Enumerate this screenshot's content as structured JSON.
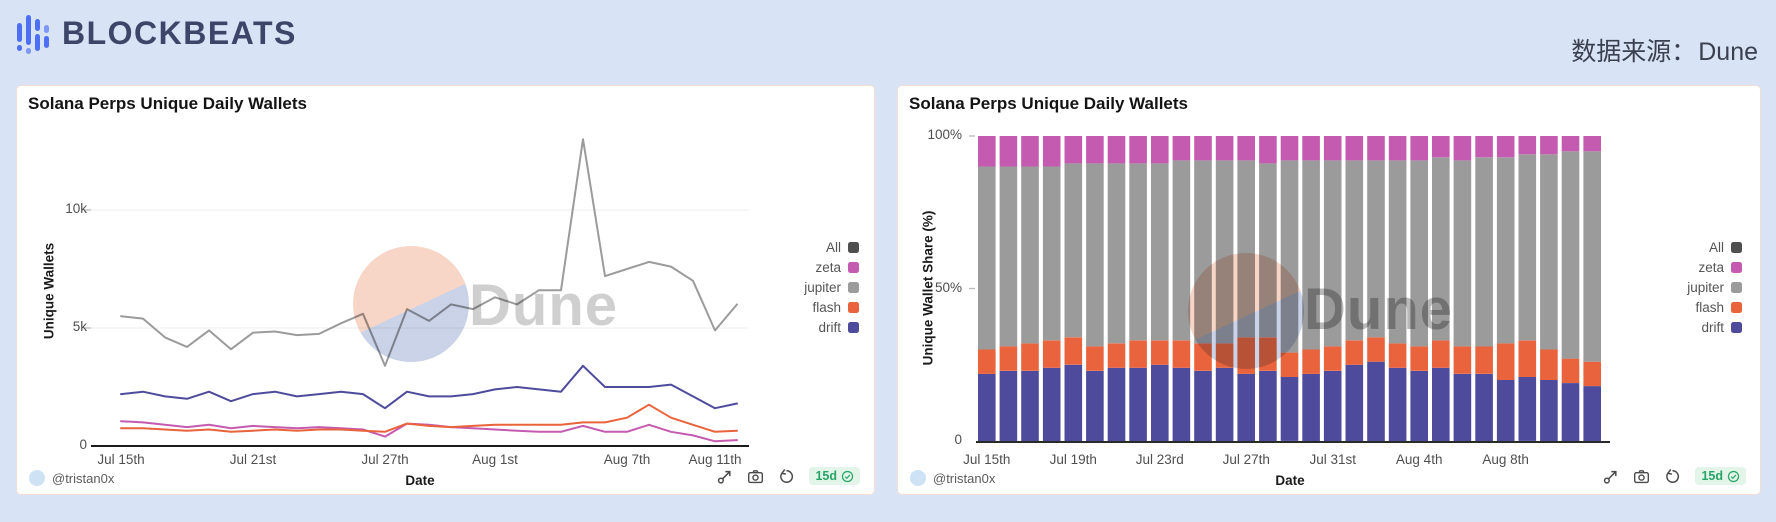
{
  "header": {
    "brand": "BLOCKBEATS",
    "source_label": "数据来源：",
    "source_value": "Dune"
  },
  "watermark": "Dune",
  "footer": {
    "author": "@tristan0x",
    "badge": "15d"
  },
  "colors": {
    "page_bg": "#d9e3f6",
    "panel_border": "#f3ded5",
    "brand_navy": "#3d4569",
    "brand_blue": "#4d6ff3",
    "all": "#4f4f4f",
    "zeta": "#c55bb0",
    "jupiter": "#9b9b9b",
    "flash": "#e9633c",
    "drift": "#4e4b9c",
    "badge_green": "#27a567",
    "watermark_salmon": "#f6d3c4",
    "watermark_blue": "#c7d0e6"
  },
  "legend": [
    "All",
    "zeta",
    "jupiter",
    "flash",
    "drift"
  ],
  "chart_data": [
    {
      "type": "line",
      "title": "Solana Perps Unique Daily Wallets",
      "xlabel": "Date",
      "ylabel": "Unique Wallets",
      "ylim": [
        0,
        13300
      ],
      "grid": true,
      "grid_values": [
        5,
        10
      ],
      "legend_position": "right",
      "unit": "thousands of wallets",
      "x": [
        "Jul 15",
        "Jul 16",
        "Jul 17",
        "Jul 18",
        "Jul 19",
        "Jul 20",
        "Jul 21",
        "Jul 22",
        "Jul 23",
        "Jul 24",
        "Jul 25",
        "Jul 26",
        "Jul 27",
        "Jul 28",
        "Jul 29",
        "Jul 30",
        "Jul 31",
        "Aug 1",
        "Aug 2",
        "Aug 3",
        "Aug 4",
        "Aug 5",
        "Aug 6",
        "Aug 7",
        "Aug 8",
        "Aug 9",
        "Aug 10",
        "Aug 11",
        "Aug 12"
      ],
      "yticks": [
        {
          "label": "10k",
          "v": 10
        },
        {
          "label": "5k",
          "v": 5
        },
        {
          "label": "0",
          "v": 0
        }
      ],
      "xticks": [
        {
          "label": "Jul 15th",
          "i": 0
        },
        {
          "label": "Jul 21st",
          "i": 6
        },
        {
          "label": "Jul 27th",
          "i": 12
        },
        {
          "label": "Aug 1st",
          "i": 17
        },
        {
          "label": "Aug 7th",
          "i": 23
        },
        {
          "label": "Aug 11th",
          "i": 27
        }
      ],
      "series": [
        {
          "name": "jupiter",
          "values": [
            5.5,
            5.4,
            4.6,
            4.2,
            4.9,
            4.1,
            4.8,
            4.85,
            4.7,
            4.75,
            5.2,
            5.6,
            3.4,
            5.8,
            5.3,
            6.0,
            5.8,
            6.3,
            6.0,
            6.6,
            6.6,
            13.0,
            7.2,
            7.5,
            7.8,
            7.6,
            7.0,
            4.9,
            6.0
          ]
        },
        {
          "name": "zeta",
          "values": [
            1.05,
            1.0,
            0.9,
            0.8,
            0.9,
            0.75,
            0.85,
            0.8,
            0.75,
            0.8,
            0.75,
            0.7,
            0.4,
            0.95,
            0.9,
            0.8,
            0.75,
            0.7,
            0.65,
            0.6,
            0.6,
            0.85,
            0.6,
            0.6,
            0.9,
            0.6,
            0.45,
            0.2,
            0.25
          ]
        },
        {
          "name": "flash",
          "values": [
            0.75,
            0.75,
            0.7,
            0.65,
            0.7,
            0.6,
            0.65,
            0.7,
            0.65,
            0.7,
            0.7,
            0.65,
            0.6,
            0.95,
            0.85,
            0.8,
            0.85,
            0.9,
            0.9,
            0.9,
            0.9,
            1.0,
            1.0,
            1.2,
            1.75,
            1.2,
            0.9,
            0.6,
            0.65
          ]
        },
        {
          "name": "drift",
          "values": [
            2.2,
            2.3,
            2.1,
            2.0,
            2.3,
            1.9,
            2.2,
            2.3,
            2.1,
            2.2,
            2.3,
            2.2,
            1.6,
            2.3,
            2.1,
            2.1,
            2.2,
            2.4,
            2.5,
            2.4,
            2.3,
            3.4,
            2.5,
            2.5,
            2.5,
            2.6,
            2.1,
            1.6,
            1.8
          ]
        }
      ]
    },
    {
      "type": "bar",
      "stacked": true,
      "title": "Solana Perps Unique Daily Wallets",
      "xlabel": "Date",
      "ylabel": "Unique Wallet Share (%)",
      "ylim": [
        0,
        100
      ],
      "legend_position": "right",
      "unit": "percent share",
      "x": [
        "Jul 15",
        "Jul 16",
        "Jul 17",
        "Jul 18",
        "Jul 19",
        "Jul 20",
        "Jul 21",
        "Jul 22",
        "Jul 23",
        "Jul 24",
        "Jul 25",
        "Jul 26",
        "Jul 27",
        "Jul 28",
        "Jul 29",
        "Jul 30",
        "Jul 31",
        "Aug 1",
        "Aug 2",
        "Aug 3",
        "Aug 4",
        "Aug 5",
        "Aug 6",
        "Aug 7",
        "Aug 8",
        "Aug 9",
        "Aug 10",
        "Aug 11",
        "Aug 12"
      ],
      "yticks": [
        {
          "label": "100%",
          "v": 100
        },
        {
          "label": "50%",
          "v": 50
        },
        {
          "label": "0",
          "v": 0
        }
      ],
      "xticks": [
        {
          "label": "Jul 15th",
          "i": 0
        },
        {
          "label": "Jul 19th",
          "i": 4
        },
        {
          "label": "Jul 23rd",
          "i": 8
        },
        {
          "label": "Jul 27th",
          "i": 12
        },
        {
          "label": "Jul 31st",
          "i": 16
        },
        {
          "label": "Aug 4th",
          "i": 20
        },
        {
          "label": "Aug 8th",
          "i": 24
        }
      ],
      "series": [
        {
          "name": "drift",
          "values": [
            22,
            23,
            23,
            24,
            25,
            23,
            24,
            24,
            25,
            24,
            23,
            24,
            22,
            23,
            21,
            22,
            23,
            25,
            26,
            24,
            23,
            24,
            22,
            22,
            20,
            21,
            20,
            19,
            18
          ]
        },
        {
          "name": "flash",
          "values": [
            8,
            8,
            9,
            9,
            9,
            8,
            8,
            9,
            8,
            9,
            9,
            8,
            12,
            11,
            8,
            8,
            8,
            8,
            8,
            8,
            8,
            9,
            9,
            9,
            12,
            12,
            10,
            8,
            8
          ]
        },
        {
          "name": "jupiter",
          "values": [
            60,
            59,
            58,
            57,
            57,
            60,
            59,
            58,
            58,
            59,
            60,
            60,
            58,
            57,
            63,
            62,
            61,
            59,
            58,
            60,
            61,
            60,
            61,
            62,
            61,
            61,
            64,
            68,
            69
          ]
        },
        {
          "name": "zeta",
          "values": [
            10,
            10,
            10,
            10,
            9,
            9,
            9,
            9,
            9,
            8,
            8,
            8,
            8,
            9,
            8,
            8,
            8,
            8,
            8,
            8,
            8,
            7,
            8,
            7,
            7,
            6,
            6,
            5,
            5
          ]
        }
      ]
    }
  ]
}
